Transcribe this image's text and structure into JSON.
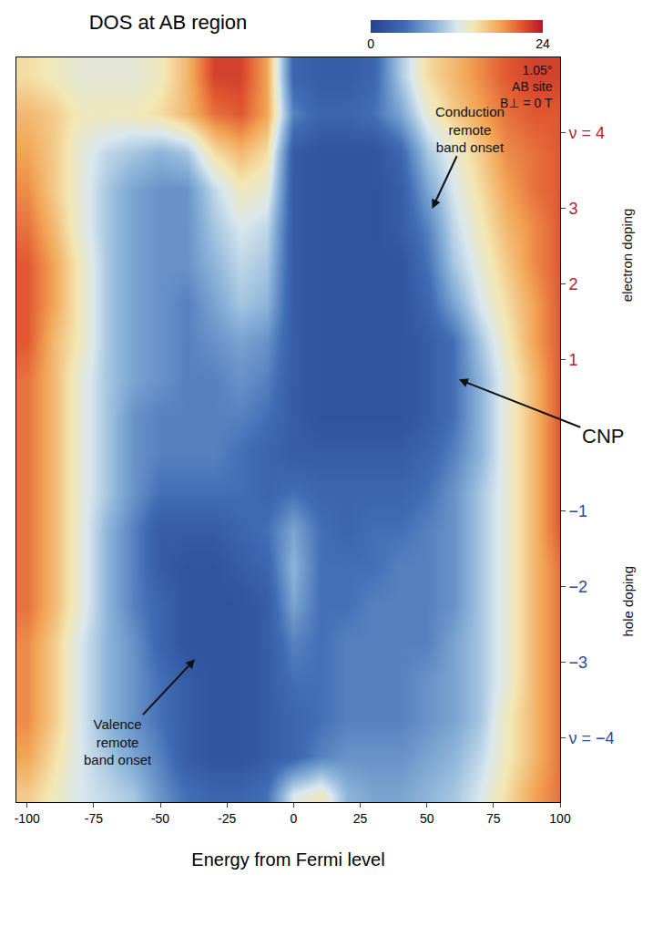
{
  "chart_data": {
    "type": "heatmap",
    "title": "DOS at AB region",
    "x_label": "Energy from Fermi level",
    "x": [
      -100,
      -90,
      -80,
      -70,
      -60,
      -50,
      -40,
      -30,
      -20,
      -10,
      0,
      10,
      20,
      30,
      40,
      50,
      60,
      70,
      80,
      90,
      100
    ],
    "y": [
      -4.75,
      -4.25,
      -3.75,
      -3.25,
      -2.75,
      -2.25,
      -1.75,
      -1.25,
      -0.75,
      -0.25,
      0.25,
      0.75,
      1.25,
      1.75,
      2.25,
      2.75,
      3.25,
      3.75,
      4.25,
      4.75
    ],
    "z": [
      [
        16,
        14,
        12,
        11,
        10,
        7,
        5,
        4,
        4,
        5,
        12,
        14,
        9,
        8,
        8,
        9,
        10,
        12,
        15,
        18,
        20
      ],
      [
        18,
        15,
        12,
        10,
        8,
        6,
        3,
        2,
        2,
        3,
        4,
        6,
        7,
        7,
        7,
        8,
        9,
        11,
        14,
        17,
        20
      ],
      [
        19,
        16,
        12,
        9,
        7,
        5,
        3,
        2,
        2,
        3,
        4,
        5,
        6,
        6,
        6,
        7,
        8,
        10,
        14,
        17,
        20
      ],
      [
        19,
        16,
        12,
        9,
        7,
        5,
        3,
        2,
        2,
        3,
        5,
        5,
        6,
        6,
        6,
        7,
        8,
        10,
        13,
        17,
        20
      ],
      [
        19,
        16,
        12,
        9,
        7,
        4,
        2,
        2,
        2,
        3,
        6,
        5,
        6,
        6,
        6,
        6,
        8,
        10,
        13,
        17,
        20
      ],
      [
        20,
        17,
        13,
        9,
        6,
        4,
        2,
        2,
        2,
        3,
        8,
        5,
        5,
        6,
        6,
        6,
        7,
        10,
        13,
        17,
        20
      ],
      [
        20,
        17,
        13,
        9,
        6,
        3,
        2,
        2,
        3,
        4,
        9,
        5,
        5,
        5,
        6,
        6,
        7,
        10,
        13,
        17,
        20
      ],
      [
        20,
        17,
        13,
        9,
        6,
        3,
        3,
        3,
        4,
        5,
        8,
        5,
        4,
        5,
        5,
        6,
        7,
        10,
        13,
        17,
        21
      ],
      [
        20,
        17,
        13,
        10,
        7,
        5,
        5,
        5,
        5,
        4,
        5,
        4,
        4,
        4,
        4,
        5,
        7,
        10,
        13,
        17,
        21
      ],
      [
        20,
        17,
        13,
        10,
        7,
        6,
        6,
        6,
        5,
        4,
        3,
        3,
        3,
        3,
        3,
        4,
        6,
        9,
        13,
        17,
        21
      ],
      [
        20,
        17,
        13,
        10,
        7,
        6,
        6,
        6,
        6,
        5,
        3,
        2,
        2,
        2,
        2,
        3,
        5,
        9,
        13,
        17,
        21
      ],
      [
        20,
        17,
        13,
        10,
        8,
        7,
        6,
        6,
        7,
        6,
        3,
        2,
        2,
        2,
        2,
        3,
        5,
        9,
        13,
        17,
        21
      ],
      [
        21,
        17,
        14,
        10,
        8,
        7,
        6,
        7,
        8,
        7,
        3,
        2,
        2,
        2,
        2,
        3,
        5,
        10,
        14,
        18,
        21
      ],
      [
        21,
        18,
        14,
        10,
        8,
        7,
        6,
        8,
        10,
        9,
        3,
        2,
        2,
        2,
        2,
        4,
        8,
        12,
        15,
        18,
        21
      ],
      [
        21,
        18,
        14,
        10,
        8,
        7,
        7,
        9,
        11,
        10,
        3,
        2,
        2,
        2,
        2,
        5,
        10,
        13,
        16,
        19,
        21
      ],
      [
        20,
        17,
        13,
        10,
        8,
        7,
        7,
        10,
        12,
        11,
        3,
        2,
        2,
        2,
        3,
        6,
        11,
        14,
        17,
        19,
        21
      ],
      [
        19,
        16,
        13,
        10,
        8,
        7,
        7,
        11,
        14,
        13,
        3,
        2,
        2,
        2,
        3,
        8,
        12,
        15,
        18,
        20,
        21
      ],
      [
        18,
        16,
        13,
        11,
        10,
        9,
        10,
        15,
        17,
        15,
        3,
        2,
        2,
        2,
        4,
        10,
        13,
        16,
        19,
        20,
        21
      ],
      [
        17,
        16,
        14,
        14,
        14,
        15,
        17,
        20,
        21,
        18,
        6,
        4,
        4,
        5,
        8,
        13,
        16,
        18,
        20,
        21,
        21
      ],
      [
        15,
        14,
        13,
        13,
        13,
        14,
        17,
        22,
        22,
        18,
        4,
        3,
        3,
        4,
        10,
        15,
        17,
        19,
        21,
        22,
        22
      ]
    ],
    "colorbar": {
      "range": [
        0,
        24
      ],
      "ticks": [
        0,
        24
      ]
    },
    "xlim": [
      -104,
      100
    ],
    "xticks": [
      -100,
      -75,
      -50,
      -25,
      0,
      25,
      50,
      75,
      100
    ],
    "ylim": [
      -4.85,
      5.0
    ],
    "yticks": [
      {
        "value": 4,
        "label": "ν = 4"
      },
      3,
      2,
      1,
      {
        "value": -1,
        "label": "−1"
      },
      {
        "value": -2,
        "label": "−2"
      },
      {
        "value": -3,
        "label": "−3"
      },
      {
        "value": -4,
        "label": "ν = −4"
      }
    ],
    "annotations": [
      {
        "lines": [
          "1.05°",
          "AB site",
          "B⊥ = 0 T"
        ]
      },
      {
        "lines": [
          "Conduction",
          "remote",
          "band onset"
        ]
      },
      {
        "lines": [
          "Valence",
          "remote",
          "band onset"
        ]
      },
      {
        "lines": [
          "CNP"
        ]
      },
      {
        "lines": [
          "electron doping"
        ]
      },
      {
        "lines": [
          "hole doping"
        ]
      }
    ]
  }
}
